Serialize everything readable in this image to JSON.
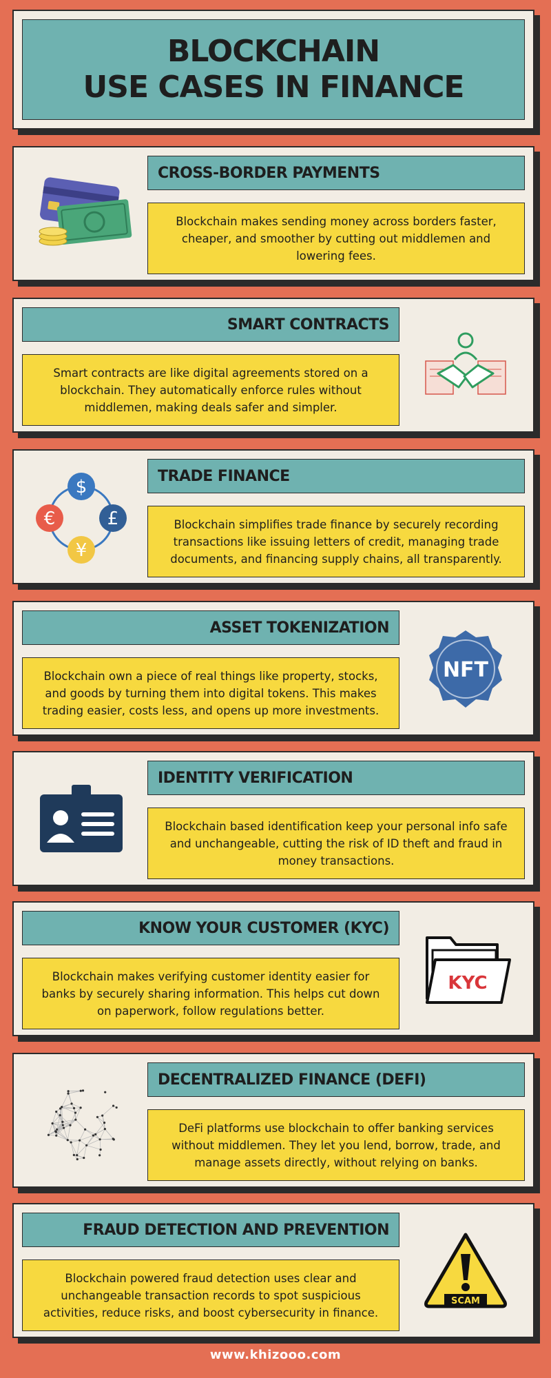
{
  "header": {
    "title_line1": "BLOCKCHAIN",
    "title_line2": "USE CASES IN FINANCE"
  },
  "cards": [
    {
      "title": "CROSS-BORDER PAYMENTS",
      "text": "Blockchain makes sending money across borders faster, cheaper, and smoother by cutting out middlemen and lowering fees.",
      "icon": "payment-cards-cash-icon"
    },
    {
      "title": "SMART CONTRACTS",
      "text": "Smart contracts are like digital agreements stored on a blockchain. They automatically enforce rules without middlemen, making deals safer and simpler.",
      "icon": "handshake-contract-icon"
    },
    {
      "title": "TRADE FINANCE",
      "text": "Blockchain simplifies trade finance by securely recording transactions like issuing letters of credit, managing trade documents, and financing supply chains, all transparently.",
      "icon": "currency-cycle-icon"
    },
    {
      "title": "ASSET TOKENIZATION",
      "text": "Blockchain own a piece of real things like property, stocks, and goods by turning them into digital tokens. This makes trading easier, costs less, and opens up more investments.",
      "icon": "nft-badge-icon",
      "icon_label": "NFT"
    },
    {
      "title": "IDENTITY VERIFICATION",
      "text": "Blockchain based identification keep your personal info safe and unchangeable, cutting the risk of ID theft and fraud in money transactions.",
      "icon": "id-card-icon"
    },
    {
      "title": "KNOW YOUR CUSTOMER (KYC)",
      "text": "Blockchain makes verifying customer identity easier for banks by securely sharing information. This helps cut down on paperwork, follow regulations better.",
      "icon": "kyc-folder-icon",
      "icon_label": "KYC"
    },
    {
      "title": "DECENTRALIZED FINANCE (DEFI)",
      "text": "DeFi platforms use blockchain to offer banking services without middlemen. They let you lend, borrow, trade, and manage assets directly, without relying on banks.",
      "icon": "network-globe-icon"
    },
    {
      "title": "FRAUD DETECTION AND PREVENTION",
      "text": "Blockchain powered fraud detection uses clear and unchangeable transaction records to spot suspicious activities, reduce risks, and boost cybersecurity in finance.",
      "icon": "scam-warning-icon",
      "icon_label": "SCAM"
    }
  ],
  "footer": {
    "url": "www.khizooo.com"
  },
  "colors": {
    "background": "#e46f54",
    "teal": "#6fb2b0",
    "yellow": "#f7d93f",
    "cream": "#f2ede4",
    "dark": "#2b2b2b"
  }
}
